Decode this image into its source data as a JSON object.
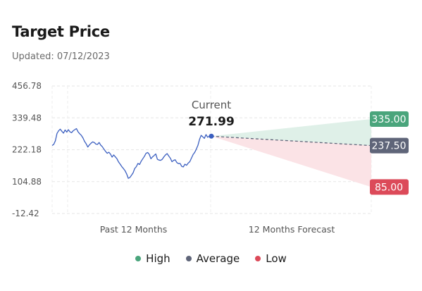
{
  "header": {
    "title": "Target Price",
    "updated": "Updated: 07/12/2023"
  },
  "chart_data": {
    "type": "line",
    "y_ticks": [
      "456.78",
      "339.48",
      "222.18",
      "104.88",
      "-12.42"
    ],
    "ylim": [
      -12.42,
      456.78
    ],
    "x_sections": [
      "Past 12 Months",
      "12 Months Forecast"
    ],
    "grid": true,
    "current": {
      "label": "Current",
      "value": "271.99",
      "numeric": 271.99
    },
    "forecast": {
      "high": {
        "name": "High",
        "value": "335.00",
        "numeric": 335.0,
        "color": "#4aa57c"
      },
      "average": {
        "name": "Average",
        "value": "237.50",
        "numeric": 237.5,
        "color": "#5f6579"
      },
      "low": {
        "name": "Low",
        "value": "85.00",
        "numeric": 85.0,
        "color": "#dc4a59"
      }
    },
    "history": [
      238,
      242,
      255,
      282,
      292,
      298,
      290,
      283,
      295,
      287,
      296,
      288,
      285,
      292,
      296,
      300,
      288,
      281,
      275,
      266,
      253,
      244,
      232,
      240,
      246,
      251,
      249,
      243,
      242,
      249,
      239,
      233,
      224,
      216,
      209,
      213,
      206,
      195,
      203,
      196,
      189,
      177,
      169,
      160,
      153,
      145,
      133,
      117,
      120,
      128,
      137,
      153,
      160,
      172,
      168,
      180,
      189,
      198,
      209,
      212,
      205,
      189,
      196,
      201,
      207,
      187,
      184,
      183,
      187,
      196,
      203,
      208,
      199,
      191,
      178,
      183,
      185,
      175,
      171,
      172,
      161,
      159,
      169,
      165,
      173,
      178,
      191,
      204,
      212,
      224,
      238,
      260,
      275,
      270,
      264,
      278,
      268,
      272
    ],
    "line_color": "#3b5fc0"
  },
  "legend": [
    {
      "label": "High",
      "color": "#4aa57c"
    },
    {
      "label": "Average",
      "color": "#5f6579"
    },
    {
      "label": "Low",
      "color": "#dc4a59"
    }
  ]
}
